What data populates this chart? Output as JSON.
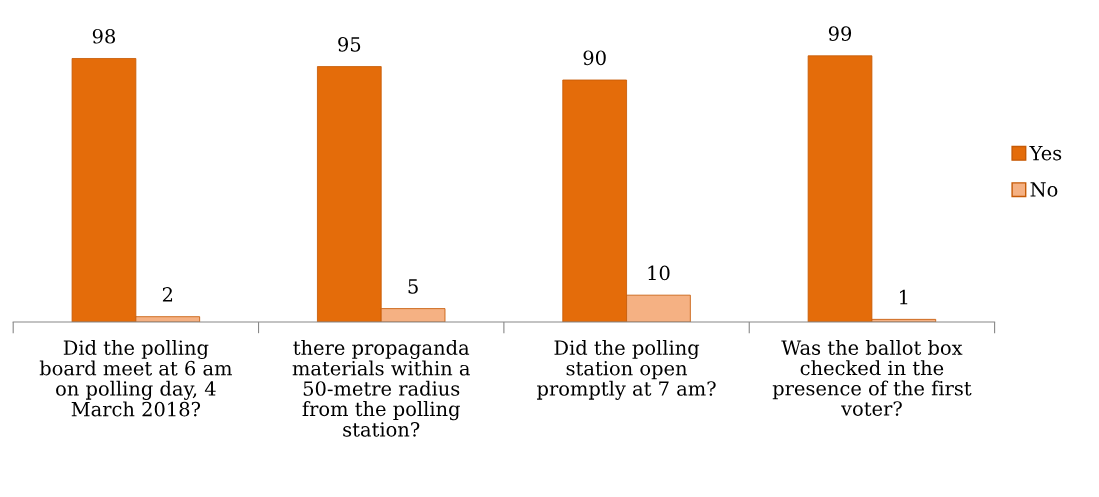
{
  "chart_data": {
    "type": "bar",
    "categories": [
      "Did the polling\nboard meet at 6 am\non polling day, 4\nMarch 2018?",
      "there propaganda\nmaterials within a\n50-metre radius\nfrom the polling\nstation?",
      "Did the polling\nstation open\npromptly at 7 am?",
      "Was the ballot box\nchecked in the\npresence of the first\nvoter?"
    ],
    "series": [
      {
        "name": "Yes",
        "color": "#e46c0a",
        "values": [
          98,
          95,
          90,
          99
        ]
      },
      {
        "name": "No",
        "color": "#f5b183",
        "values": [
          2,
          5,
          10,
          1
        ]
      }
    ],
    "data_labels": true,
    "legend": "right",
    "grid": false
  }
}
